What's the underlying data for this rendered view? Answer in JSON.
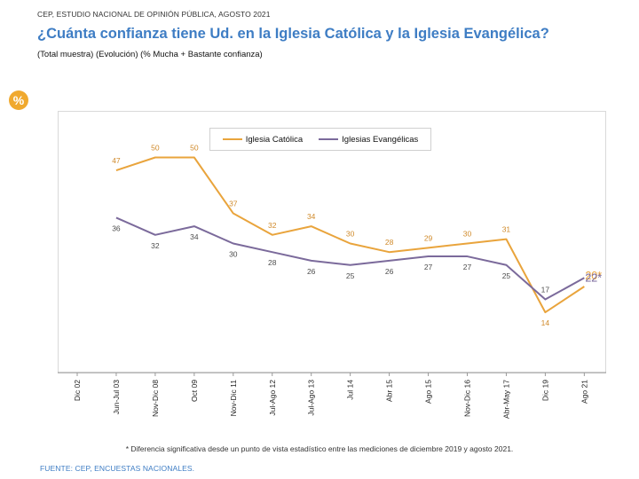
{
  "header": {
    "source": "CEP, ESTUDIO NACIONAL DE OPINIÓN PÚBLICA, AGOSTO 2021",
    "title": "¿Cuánta confianza tiene Ud. en la Iglesia Católica y la Iglesia Evangélica?",
    "subtitle": "(Total muestra) (Evolución) (% Mucha + Bastante confianza)",
    "badge": "%"
  },
  "footnote": "* Diferencia significativa desde un punto de vista estadístico entre las mediciones de diciembre 2019 y agosto 2021.",
  "source_bottom": "FUENTE: CEP, ENCUESTAS NACIONALES.",
  "colors": {
    "catolica": "#e9a43c",
    "evangelicas": "#7b6a9b"
  },
  "chart_data": {
    "type": "line",
    "categories": [
      "Dic 02",
      "Jun-Jul 03",
      "Nov-Dic 08",
      "Oct 09",
      "Nov-Dic 11",
      "Jul-Ago 12",
      "Jul-Ago 13",
      "Jul 14",
      "Abr 15",
      "Ago 15",
      "Nov-Dic 16",
      "Abr-May 17",
      "Dic 19",
      "Ago 21"
    ],
    "series": [
      {
        "name": "Iglesia Católica",
        "values": [
          null,
          47,
          50,
          50,
          37,
          32,
          34,
          30,
          28,
          29,
          30,
          31,
          14,
          20
        ],
        "last_label": "20*"
      },
      {
        "name": "Iglesias Evangélicas",
        "values": [
          null,
          36,
          32,
          34,
          30,
          28,
          26,
          25,
          26,
          27,
          27,
          25,
          17,
          22
        ],
        "last_label": "22*"
      }
    ],
    "ylim": [
      0,
      70
    ],
    "legend": "top-center",
    "grid": false
  }
}
